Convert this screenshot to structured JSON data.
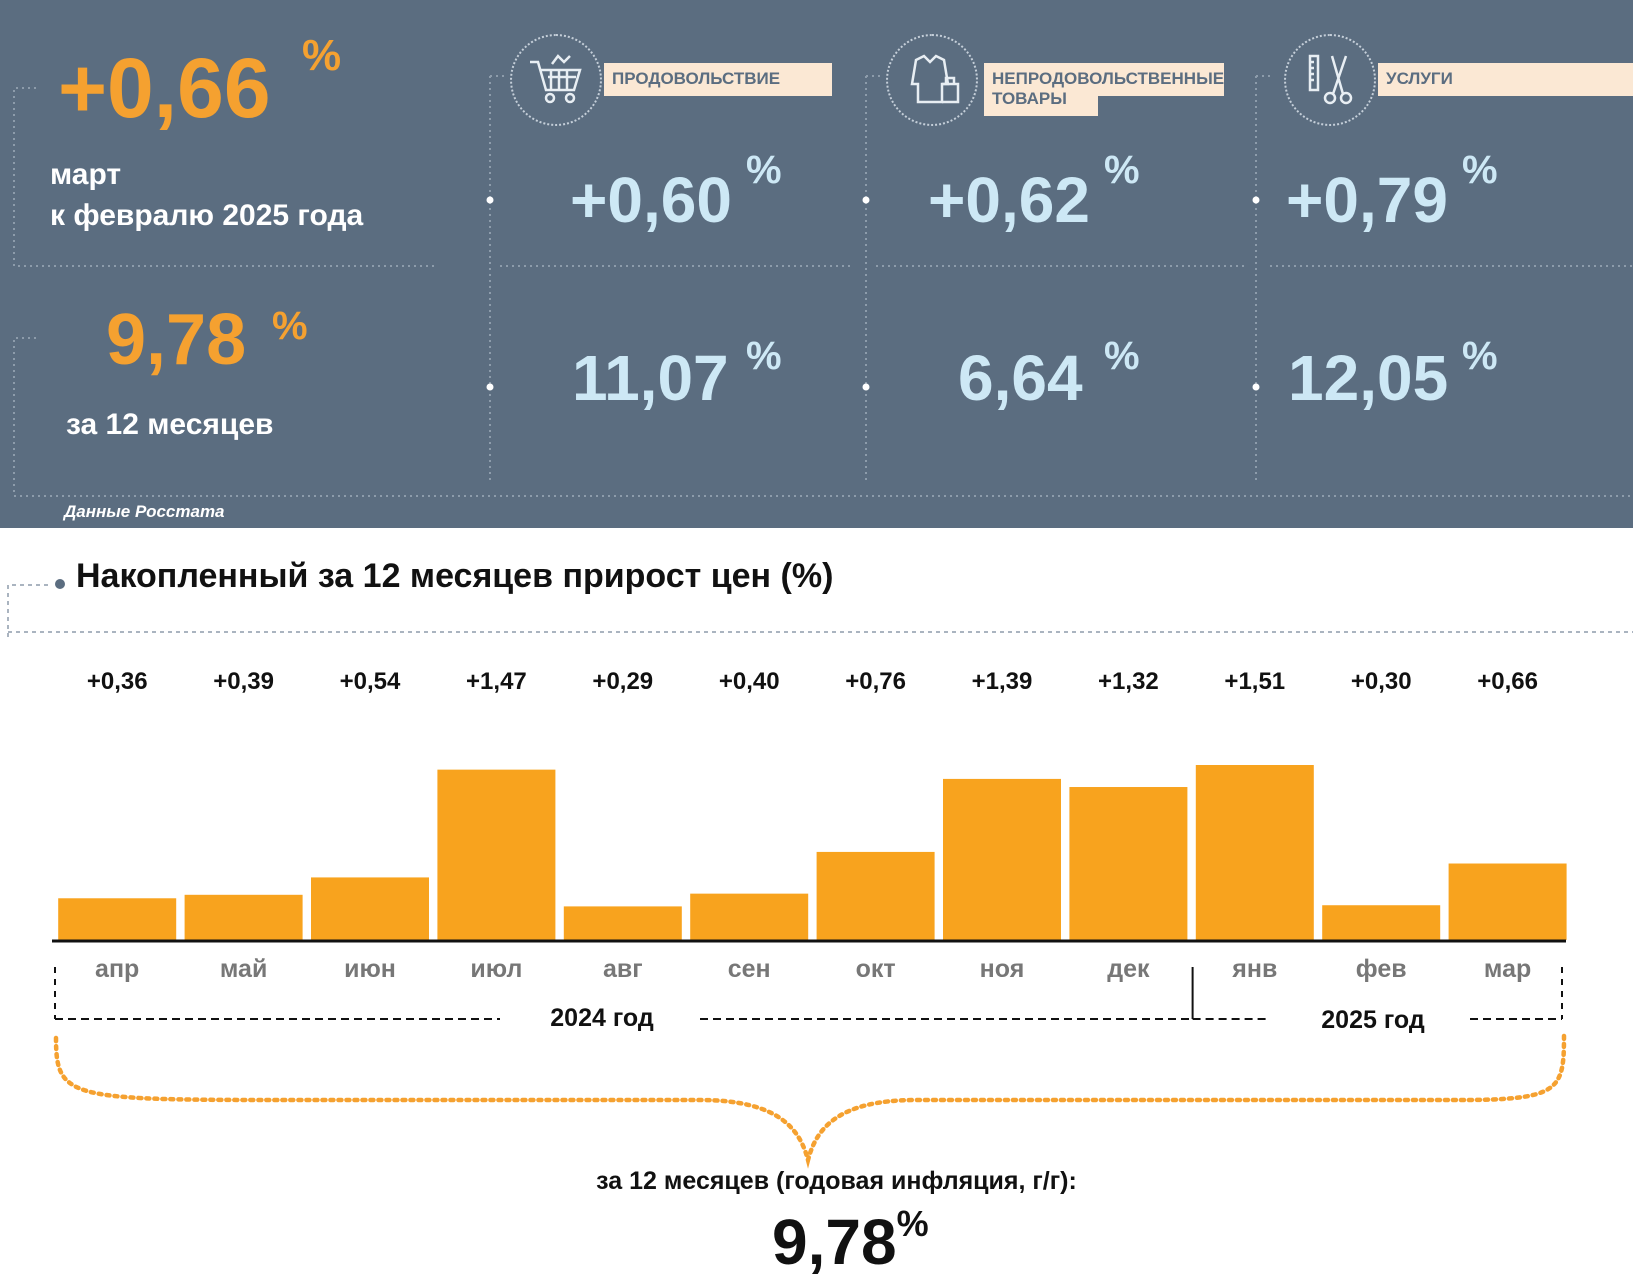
{
  "monthly": {
    "value": "+0,66",
    "unit": "%",
    "caption_line1": "март",
    "caption_line2": "к февралю 2025 года"
  },
  "annual": {
    "value": "9,78",
    "unit": "%",
    "caption": "за 12 месяцев"
  },
  "categories": [
    {
      "label": "ПРОДОВОЛЬСТВИЕ",
      "label_line2": "",
      "icon": "shopping-cart-icon",
      "monthly": "+0,60",
      "annual": "11,07",
      "unit": "%"
    },
    {
      "label": "НЕПРОДОВОЛЬСТВЕННЫЕ",
      "label_line2": "ТОВАРЫ",
      "icon": "clothes-bag-icon",
      "monthly": "+0,62",
      "annual": "6,64",
      "unit": "%"
    },
    {
      "label": "УСЛУГИ",
      "label_line2": "",
      "icon": "comb-scissors-icon",
      "monthly": "+0,79",
      "annual": "12,05",
      "unit": "%"
    }
  ],
  "source": "Данные Росстата",
  "colors": {
    "panel_bg": "#5b6d80",
    "accent_orange": "#f5a130",
    "light_blue": "#cde8f5",
    "label_bg": "#fbe8d4",
    "bar": "#f8a31e"
  },
  "chart_data": {
    "type": "bar",
    "title": "Накопленный за 12 месяцев прирост цен (%)",
    "categories": [
      "апр",
      "май",
      "июн",
      "июл",
      "авг",
      "сен",
      "окт",
      "ноя",
      "дек",
      "янв",
      "фев",
      "мар"
    ],
    "values": [
      0.36,
      0.39,
      0.54,
      1.47,
      0.29,
      0.4,
      0.76,
      1.39,
      1.32,
      1.51,
      0.3,
      0.66
    ],
    "value_labels": [
      "+0,36",
      "+0,39",
      "+0,54",
      "+1,47",
      "+0,29",
      "+0,40",
      "+0,76",
      "+1,39",
      "+1,32",
      "+1,51",
      "+0,30",
      "+0,66"
    ],
    "year_groups": [
      {
        "label": "2024 год",
        "from": "апр",
        "to": "дек"
      },
      {
        "label": "2025 год",
        "from": "янв",
        "to": "мар"
      }
    ],
    "summary_label": "за 12 месяцев (годовая инфляция, г/г):",
    "summary_value": "9,78",
    "summary_unit": "%",
    "ylim": [
      0,
      1.6
    ],
    "grid": false
  }
}
